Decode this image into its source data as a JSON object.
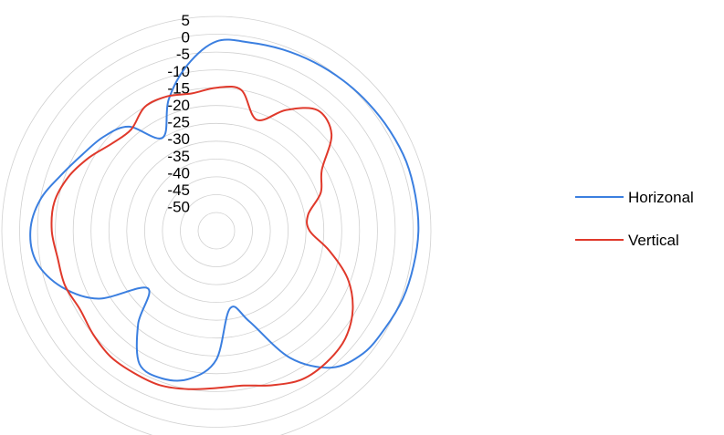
{
  "chart_data": {
    "type": "line",
    "subtype": "polar",
    "title": "",
    "radial_ticks": [
      "5",
      "0",
      "-5",
      "-10",
      "-15",
      "-20",
      "-25",
      "-30",
      "-35",
      "-40",
      "-45",
      "-50"
    ],
    "rlim": [
      -50,
      5
    ],
    "angle_unit": "degrees",
    "angle_zero": "top",
    "angle_direction": "clockwise",
    "grid": true,
    "legend_position": "right",
    "series": [
      {
        "name": "Horizonal",
        "color": "#3b7fe0",
        "theta": [
          0,
          10,
          20,
          30,
          40,
          50,
          60,
          70,
          80,
          90,
          100,
          110,
          120,
          130,
          140,
          150,
          160,
          170,
          180,
          190,
          200,
          210,
          220,
          230,
          240,
          250,
          260,
          270,
          280,
          290,
          300,
          310,
          320,
          330,
          340,
          350
        ],
        "r": [
          -2,
          -1.5,
          -1,
          -0.5,
          0,
          0.5,
          1,
          1.5,
          1.5,
          1.5,
          1,
          0.5,
          -0.5,
          -1.5,
          -5,
          -14,
          -28,
          -33,
          -19,
          -13,
          -11,
          -12,
          -21,
          -30,
          -17,
          -9,
          -4,
          -3,
          -5,
          -9,
          -12,
          -14,
          -17,
          -25,
          -16,
          -8
        ]
      },
      {
        "name": "Vertical",
        "color": "#e0392b",
        "theta": [
          0,
          10,
          20,
          30,
          40,
          50,
          60,
          70,
          80,
          90,
          100,
          110,
          120,
          130,
          140,
          150,
          160,
          170,
          180,
          190,
          200,
          210,
          220,
          230,
          240,
          250,
          260,
          270,
          280,
          290,
          300,
          310,
          320,
          330,
          340,
          350
        ],
        "r": [
          -15,
          -15,
          -22,
          -16,
          -11,
          -13,
          -21,
          -24,
          -29,
          -29,
          -23,
          -16,
          -11,
          -8,
          -7,
          -7,
          -9,
          -11,
          -11,
          -10,
          -9,
          -9,
          -9,
          -10,
          -11,
          -10,
          -10,
          -9,
          -9,
          -11,
          -14,
          -17,
          -18,
          -15,
          -15,
          -16
        ]
      }
    ]
  }
}
